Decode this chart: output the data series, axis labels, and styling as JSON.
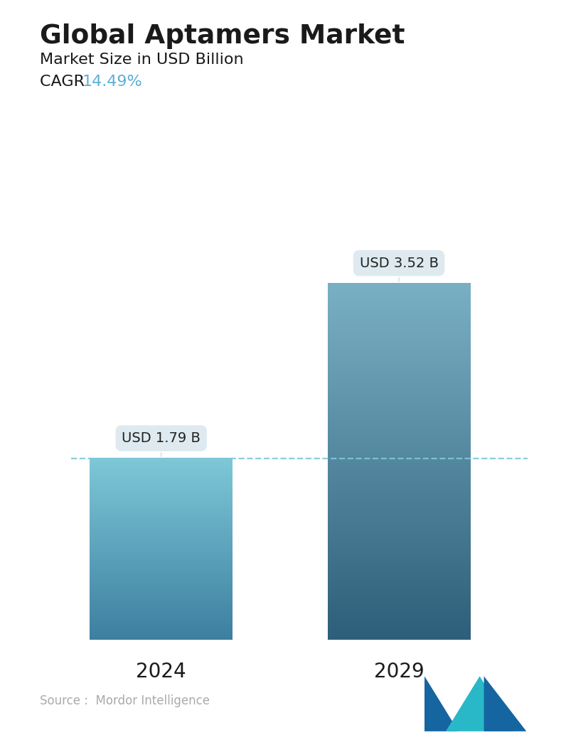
{
  "title": "Global Aptamers Market",
  "subtitle": "Market Size in USD Billion",
  "cagr_label": "CAGR  ",
  "cagr_value": "14.49%",
  "cagr_color": "#5bafd6",
  "title_color": "#1a1a1a",
  "subtitle_color": "#1a1a1a",
  "categories": [
    "2024",
    "2029"
  ],
  "values": [
    1.79,
    3.52
  ],
  "bar_labels": [
    "USD 1.79 B",
    "USD 3.52 B"
  ],
  "bar_color_top": [
    "#7ec8d8",
    "#7ab0c4"
  ],
  "bar_color_bottom": [
    "#3d7fa0",
    "#2e5f7a"
  ],
  "dashed_line_color": "#7ec8d8",
  "dashed_line_y": 1.79,
  "source_text": "Source :  Mordor Intelligence",
  "source_color": "#aaaaaa",
  "background_color": "#ffffff",
  "ylim_max": 4.5,
  "annotation_bg_color": "#deeaf0",
  "annotation_text_color": "#222222"
}
